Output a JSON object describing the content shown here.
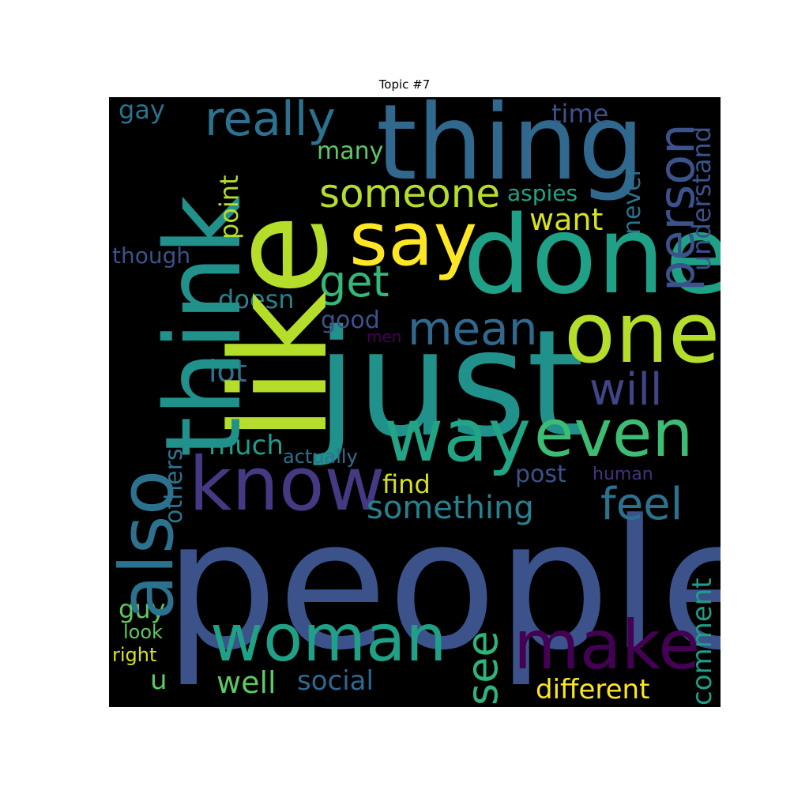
{
  "title": "Topic #7",
  "words": [
    {
      "text": "people",
      "color": "#3b528b"
    },
    {
      "text": "like",
      "color": "#b5de2b"
    },
    {
      "text": "just",
      "color": "#21918c"
    },
    {
      "text": "think",
      "color": "#21918c"
    },
    {
      "text": "thing",
      "color": "#31688e"
    },
    {
      "text": "done",
      "color": "#1fa187"
    },
    {
      "text": "one",
      "color": "#b5de2b"
    },
    {
      "text": "way",
      "color": "#21a585"
    },
    {
      "text": "know",
      "color": "#443a83"
    },
    {
      "text": "also",
      "color": "#2c728e"
    },
    {
      "text": "even",
      "color": "#3dbc74"
    },
    {
      "text": "make",
      "color": "#440154"
    },
    {
      "text": "woman",
      "color": "#1fa187"
    },
    {
      "text": "say",
      "color": "#fde725"
    },
    {
      "text": "really",
      "color": "#2c728e"
    },
    {
      "text": "someone",
      "color": "#b5de2b"
    },
    {
      "text": "person",
      "color": "#3b528b"
    },
    {
      "text": "mean",
      "color": "#31688e"
    },
    {
      "text": "get",
      "color": "#35b779"
    },
    {
      "text": "will",
      "color": "#414487"
    },
    {
      "text": "feel",
      "color": "#2c728e"
    },
    {
      "text": "see",
      "color": "#2fb47c"
    },
    {
      "text": "something",
      "color": "#26828e"
    },
    {
      "text": "different",
      "color": "#fde725"
    },
    {
      "text": "want",
      "color": "#d8e219"
    },
    {
      "text": "comment",
      "color": "#1f9e89"
    },
    {
      "text": "lot",
      "color": "#2c728e"
    },
    {
      "text": "much",
      "color": "#1f9e89"
    },
    {
      "text": "well",
      "color": "#5ec962"
    },
    {
      "text": "social",
      "color": "#31688e"
    },
    {
      "text": "find",
      "color": "#d8e219"
    },
    {
      "text": "post",
      "color": "#3b528b"
    },
    {
      "text": "good",
      "color": "#3b528b"
    },
    {
      "text": "doesn",
      "color": "#26828e"
    },
    {
      "text": "others",
      "color": "#2c728e"
    },
    {
      "text": "understand",
      "color": "#3b528b"
    },
    {
      "text": "never",
      "color": "#2c728e"
    },
    {
      "text": "point",
      "color": "#b5de2b"
    },
    {
      "text": "many",
      "color": "#5ec962"
    },
    {
      "text": "time",
      "color": "#3b528b"
    },
    {
      "text": "aspies",
      "color": "#20a386"
    },
    {
      "text": "gay",
      "color": "#2c728e"
    },
    {
      "text": "though",
      "color": "#3b528b"
    },
    {
      "text": "guy",
      "color": "#5ec962"
    },
    {
      "text": "look",
      "color": "#5ec962"
    },
    {
      "text": "right",
      "color": "#d8e219"
    },
    {
      "text": "u",
      "color": "#5ec962"
    },
    {
      "text": "actually",
      "color": "#2c728e"
    },
    {
      "text": "human",
      "color": "#46327e"
    },
    {
      "text": "men",
      "color": "#440154"
    }
  ]
}
